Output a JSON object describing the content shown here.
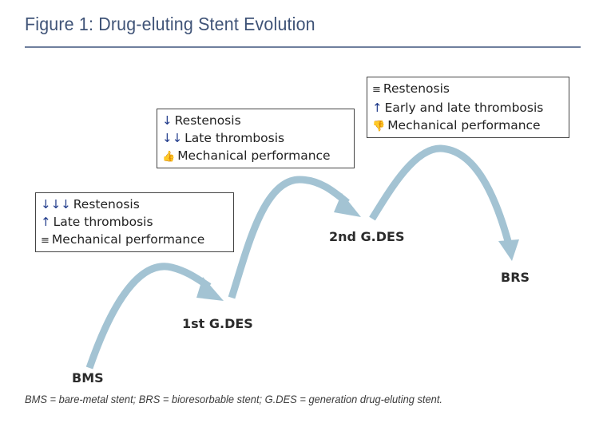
{
  "figure": {
    "title": "Figure 1: Drug-eluting Stent Evolution",
    "caption": "BMS = bare-metal stent; BRS = bioresorbable stent; G.DES = generation drug-eluting stent.",
    "arrow_color": "#a3c3d3",
    "title_color": "#3f5377"
  },
  "nodes": {
    "bms": "BMS",
    "first_gdes": "1st G.DES",
    "second_gdes": "2nd G.DES",
    "brs": "BRS"
  },
  "transitions": [
    {
      "from": "BMS",
      "to": "1st G.DES",
      "items": [
        {
          "symbol": "↓↓↓",
          "icon": "triple-down-arrow-icon",
          "text": "Restenosis"
        },
        {
          "symbol": "↑",
          "icon": "up-arrow-icon",
          "text": "Late thrombosis"
        },
        {
          "symbol": "≡",
          "icon": "equivalent-icon",
          "text": "Mechanical performance"
        }
      ]
    },
    {
      "from": "1st G.DES",
      "to": "2nd G.DES",
      "items": [
        {
          "symbol": "↓",
          "icon": "down-arrow-icon",
          "text": "Restenosis"
        },
        {
          "symbol": "↓↓",
          "icon": "double-down-arrow-icon",
          "text": "Late thrombosis"
        },
        {
          "symbol": "👍",
          "icon": "thumbs-up-icon",
          "text": "Mechanical performance"
        }
      ]
    },
    {
      "from": "2nd G.DES",
      "to": "BRS",
      "items": [
        {
          "symbol": "≡",
          "icon": "equivalent-icon",
          "text": "Restenosis"
        },
        {
          "symbol": "↑",
          "icon": "up-arrow-icon",
          "text": "Early and late thrombosis"
        },
        {
          "symbol": "👎",
          "icon": "thumbs-down-icon",
          "text": "Mechanical performance"
        }
      ]
    }
  ]
}
